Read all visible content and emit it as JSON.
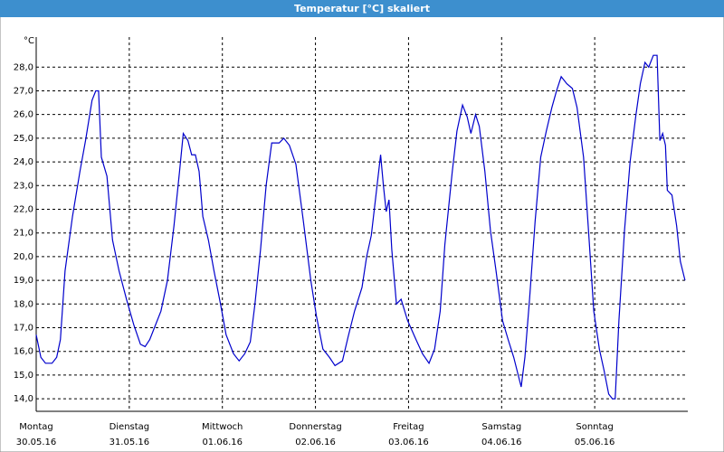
{
  "chart_data": {
    "type": "line",
    "title": "Temperatur [°C] skaliert",
    "ylabel": "°C",
    "xlim": [
      0,
      7
    ],
    "xticks": [
      {
        "value": 0,
        "label": "Montag",
        "date": "30.05.16"
      },
      {
        "value": 1,
        "label": "Dienstag",
        "date": "31.05.16"
      },
      {
        "value": 2,
        "label": "Mittwoch",
        "date": "01.06.16"
      },
      {
        "value": 3,
        "label": "Donnerstag",
        "date": "02.06.16"
      },
      {
        "value": 4,
        "label": "Freitag",
        "date": "03.06.16"
      },
      {
        "value": 5,
        "label": "Samstag",
        "date": "04.06.16"
      },
      {
        "value": 6,
        "label": "Sonntag",
        "date": "05.06.16"
      }
    ],
    "ylim": [
      13.47,
      29.27
    ],
    "yticks": [
      {
        "value": 14,
        "label": "14,0"
      },
      {
        "value": 15,
        "label": "15,0"
      },
      {
        "value": 16,
        "label": "16,0"
      },
      {
        "value": 17,
        "label": "17,0"
      },
      {
        "value": 18,
        "label": "18,0"
      },
      {
        "value": 19,
        "label": "19,0"
      },
      {
        "value": 20,
        "label": "20,0"
      },
      {
        "value": 21,
        "label": "21,0"
      },
      {
        "value": 22,
        "label": "22,0"
      },
      {
        "value": 23,
        "label": "23,0"
      },
      {
        "value": 24,
        "label": "24,0"
      },
      {
        "value": 25,
        "label": "25,0"
      },
      {
        "value": 26,
        "label": "26,0"
      },
      {
        "value": 27,
        "label": "27,0"
      },
      {
        "value": 28,
        "label": "28,0"
      }
    ],
    "grid": true,
    "x": [
      0,
      0.05,
      0.1,
      0.17,
      0.22,
      0.26,
      0.31,
      0.39,
      0.47,
      0.53,
      0.6,
      0.64,
      0.67,
      0.7,
      0.76,
      0.82,
      0.89,
      0.97,
      1.05,
      1.12,
      1.17,
      1.22,
      1.28,
      1.34,
      1.41,
      1.48,
      1.54,
      1.58,
      1.63,
      1.67,
      1.71,
      1.75,
      1.79,
      1.85,
      1.91,
      1.98,
      2.04,
      2.12,
      2.18,
      2.24,
      2.3,
      2.35,
      2.41,
      2.47,
      2.53,
      2.61,
      2.66,
      2.72,
      2.79,
      2.87,
      2.95,
      3.01,
      3.08,
      3.15,
      3.21,
      3.29,
      3.35,
      3.42,
      3.5,
      3.55,
      3.6,
      3.65,
      3.7,
      3.73,
      3.76,
      3.79,
      3.82,
      3.87,
      3.92,
      3.99,
      4.08,
      4.15,
      4.22,
      4.28,
      4.34,
      4.39,
      4.47,
      4.52,
      4.58,
      4.63,
      4.67,
      4.72,
      4.76,
      4.82,
      4.88,
      4.94,
      5.01,
      5.07,
      5.13,
      5.21,
      5.25,
      5.3,
      5.36,
      5.42,
      5.48,
      5.54,
      5.59,
      5.64,
      5.7,
      5.76,
      5.81,
      5.88,
      5.93,
      5.99,
      6.05,
      6.1,
      6.15,
      6.19,
      6.22,
      6.26,
      6.32,
      6.38,
      6.44,
      6.49,
      6.54,
      6.58,
      6.63,
      6.67,
      6.7,
      6.73,
      6.76,
      6.78,
      6.83,
      6.88,
      6.92,
      6.97
    ],
    "series": [
      {
        "color": "#0000cc",
        "values": [
          16.7,
          15.75,
          15.5,
          15.5,
          15.75,
          16.5,
          19.4,
          21.7,
          23.6,
          24.9,
          26.6,
          27.0,
          27.0,
          24.2,
          23.4,
          20.7,
          19.4,
          18.2,
          17.1,
          16.3,
          16.2,
          16.5,
          17.1,
          17.7,
          19.0,
          21.3,
          23.6,
          25.2,
          24.9,
          24.3,
          24.3,
          23.6,
          21.7,
          20.7,
          19.4,
          18.0,
          16.7,
          15.9,
          15.6,
          15.9,
          16.4,
          18.0,
          20.3,
          23.0,
          24.8,
          24.8,
          25.0,
          24.7,
          23.9,
          21.5,
          19.0,
          17.5,
          16.1,
          15.75,
          15.4,
          15.6,
          16.6,
          17.7,
          18.7,
          20.0,
          20.9,
          22.6,
          24.3,
          23.0,
          21.9,
          22.4,
          20.3,
          18.0,
          18.2,
          17.3,
          16.5,
          15.9,
          15.5,
          16.1,
          17.7,
          20.5,
          23.6,
          25.3,
          26.4,
          25.9,
          25.2,
          26.0,
          25.5,
          23.6,
          21.1,
          19.4,
          17.3,
          16.5,
          15.75,
          14.5,
          15.75,
          18.2,
          21.5,
          24.2,
          25.3,
          26.3,
          27.0,
          27.6,
          27.3,
          27.1,
          26.3,
          24.2,
          21.3,
          17.7,
          16.1,
          15.2,
          14.2,
          14.0,
          14.0,
          17.3,
          21.1,
          24.0,
          25.9,
          27.3,
          28.2,
          28.0,
          28.5,
          28.5,
          24.9,
          25.2,
          24.7,
          22.8,
          22.6,
          21.3,
          19.8,
          19.0
        ]
      }
    ]
  }
}
